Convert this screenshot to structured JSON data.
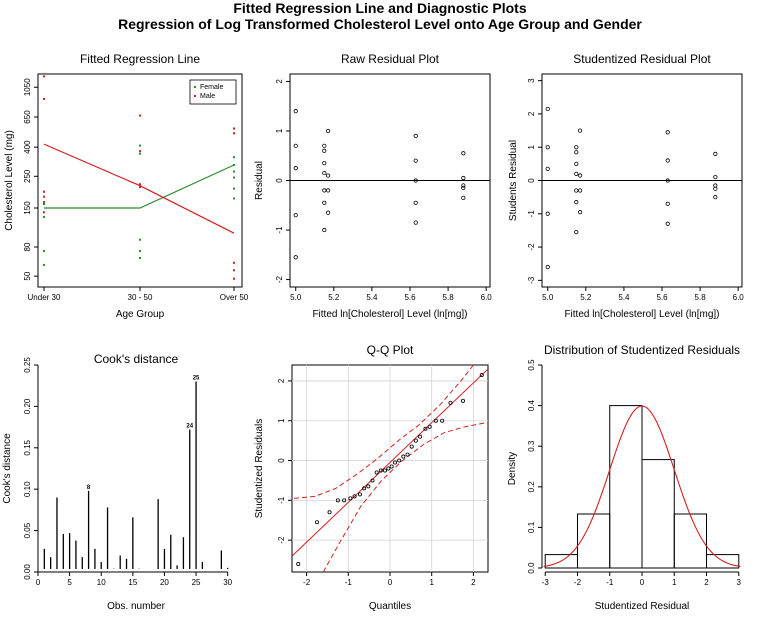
{
  "figure": {
    "title_line1": "Fitted Regression Line and Diagnostic Plots",
    "title_line2": "Regression of Log Transformed Cholesterol Level onto Age Group and Gender"
  },
  "chart_data": [
    {
      "id": "fitted",
      "type": "scatter",
      "title": "Fitted Regression Line",
      "xlabel": "Age Group",
      "ylabel": "Cholesterol Level (mg)",
      "categories": [
        "Under 30",
        "30 - 50",
        "Over 50"
      ],
      "y_scale": "log",
      "y_ticks": [
        50,
        80,
        150,
        250,
        400,
        650,
        1050
      ],
      "ylim": [
        42,
        1300
      ],
      "legend": {
        "placement": "top-right",
        "entries": [
          "Female",
          "Male"
        ]
      },
      "series": [
        {
          "name": "Female",
          "color": "#2e8b2e",
          "points": [
            [
              0,
              60
            ],
            [
              0,
              75
            ],
            [
              0,
              130
            ],
            [
              0,
              160
            ],
            [
              0,
              195
            ],
            [
              1,
              67
            ],
            [
              1,
              75
            ],
            [
              1,
              90
            ],
            [
              1,
              360
            ],
            [
              1,
              410
            ],
            [
              2,
              175
            ],
            [
              2,
              205
            ],
            [
              2,
              245
            ],
            [
              2,
              270
            ],
            [
              2,
              300
            ],
            [
              2,
              340
            ]
          ],
          "fit": [
            150,
            150,
            300
          ]
        },
        {
          "name": "Male",
          "color": "#d42020",
          "points": [
            [
              0,
              140
            ],
            [
              0,
              165
            ],
            [
              0,
              180
            ],
            [
              0,
              195
            ],
            [
              0,
              870
            ],
            [
              0,
              1250
            ],
            [
              1,
              210
            ],
            [
              1,
              220
            ],
            [
              1,
              375
            ],
            [
              1,
              665
            ],
            [
              2,
              48
            ],
            [
              2,
              55
            ],
            [
              2,
              62
            ],
            [
              2,
              500
            ],
            [
              2,
              540
            ]
          ],
          "fit": [
            420,
            215,
            100
          ]
        }
      ]
    },
    {
      "id": "raw_resid",
      "type": "scatter",
      "title": "Raw Residual Plot",
      "xlabel": "Fitted ln[Cholesterol] Level (ln[mg])",
      "ylabel": "Residual",
      "xlim": [
        4.97,
        6.02
      ],
      "ylim": [
        -2.15,
        2.15
      ],
      "x_ticks": [
        "5.0",
        "5.2",
        "5.4",
        "5.6",
        "5.8",
        "6.0"
      ],
      "y_ticks": [
        "-2",
        "-1",
        "0",
        "1",
        "2"
      ],
      "reference_line": 0,
      "points": [
        [
          5.0,
          1.4
        ],
        [
          5.0,
          0.7
        ],
        [
          5.0,
          0.25
        ],
        [
          5.0,
          -0.7
        ],
        [
          5.0,
          -1.55
        ],
        [
          5.15,
          0.7
        ],
        [
          5.15,
          0.6
        ],
        [
          5.15,
          0.35
        ],
        [
          5.15,
          0.15
        ],
        [
          5.15,
          -0.2
        ],
        [
          5.15,
          -0.45
        ],
        [
          5.15,
          -1.0
        ],
        [
          5.17,
          1.0
        ],
        [
          5.17,
          0.1
        ],
        [
          5.17,
          -0.2
        ],
        [
          5.17,
          -0.65
        ],
        [
          5.63,
          0.9
        ],
        [
          5.63,
          0.4
        ],
        [
          5.63,
          0.0
        ],
        [
          5.63,
          -0.45
        ],
        [
          5.63,
          -0.85
        ],
        [
          5.88,
          0.55
        ],
        [
          5.88,
          0.05
        ],
        [
          5.88,
          -0.1
        ],
        [
          5.88,
          -0.15
        ],
        [
          5.88,
          -0.35
        ]
      ]
    },
    {
      "id": "stud_resid",
      "type": "scatter",
      "title": "Studentized Residual Plot",
      "xlabel": "Fitted ln[Cholesterol] Level (ln[mg])",
      "ylabel": "Students Residual",
      "xlim": [
        4.97,
        6.02
      ],
      "ylim": [
        -3.2,
        3.2
      ],
      "x_ticks": [
        "5.0",
        "5.2",
        "5.4",
        "5.6",
        "5.8",
        "6.0"
      ],
      "y_ticks": [
        "-3",
        "-2",
        "-1",
        "0",
        "1",
        "2",
        "3"
      ],
      "reference_line": 0,
      "points": [
        [
          5.0,
          2.15
        ],
        [
          5.0,
          1.0
        ],
        [
          5.0,
          0.35
        ],
        [
          5.0,
          -1.0
        ],
        [
          5.0,
          -2.6
        ],
        [
          5.15,
          1.0
        ],
        [
          5.15,
          0.85
        ],
        [
          5.15,
          0.5
        ],
        [
          5.15,
          0.2
        ],
        [
          5.15,
          -0.3
        ],
        [
          5.15,
          -0.65
        ],
        [
          5.15,
          -1.55
        ],
        [
          5.17,
          1.5
        ],
        [
          5.17,
          0.15
        ],
        [
          5.17,
          -0.3
        ],
        [
          5.17,
          -0.95
        ],
        [
          5.63,
          1.45
        ],
        [
          5.63,
          0.6
        ],
        [
          5.63,
          0.0
        ],
        [
          5.63,
          -0.7
        ],
        [
          5.63,
          -1.3
        ],
        [
          5.88,
          0.8
        ],
        [
          5.88,
          0.1
        ],
        [
          5.88,
          -0.15
        ],
        [
          5.88,
          -0.25
        ],
        [
          5.88,
          -0.5
        ]
      ]
    },
    {
      "id": "cooks",
      "type": "bar",
      "title": "Cook's distance",
      "xlabel": "Obs. number",
      "ylabel": "Cook's distance",
      "xlim": [
        0,
        31
      ],
      "ylim": [
        0,
        0.25
      ],
      "x_ticks": [
        0,
        5,
        10,
        15,
        20,
        25,
        30
      ],
      "y_ticks": [
        "0.00",
        "0.05",
        "0.10",
        "0.15",
        "0.20",
        "0.25"
      ],
      "x": [
        1,
        2,
        3,
        4,
        5,
        6,
        7,
        8,
        9,
        10,
        11,
        12,
        13,
        14,
        15,
        16,
        17,
        18,
        19,
        20,
        21,
        22,
        23,
        24,
        25,
        26,
        27,
        28,
        29,
        30
      ],
      "values": [
        0.028,
        0.018,
        0.09,
        0.046,
        0.047,
        0.038,
        0.018,
        0.098,
        0.028,
        0.012,
        0.078,
        0.004,
        0.02,
        0.016,
        0.066,
        0.004,
        0.002,
        0.003,
        0.088,
        0.028,
        0.045,
        0.008,
        0.042,
        0.172,
        0.23,
        0.012,
        0.003,
        0.003,
        0.026,
        0.005
      ],
      "labeled_points": [
        {
          "x": 8,
          "label": "8"
        },
        {
          "x": 24,
          "label": "24"
        },
        {
          "x": 25,
          "label": "25"
        }
      ]
    },
    {
      "id": "qq",
      "type": "scatter",
      "title": "Q-Q Plot",
      "xlabel": "Quantiles",
      "ylabel": "Studentized Residuals",
      "xlim": [
        -2.35,
        2.35
      ],
      "ylim": [
        -2.8,
        2.4
      ],
      "x_ticks": [
        "-2",
        "-1",
        "0",
        "1",
        "2"
      ],
      "y_ticks": [
        "-2",
        "-1",
        "0",
        "1",
        "2"
      ],
      "grid": true,
      "points": [
        [
          -2.2,
          -2.6
        ],
        [
          -1.75,
          -1.55
        ],
        [
          -1.45,
          -1.3
        ],
        [
          -1.25,
          -1.0
        ],
        [
          -1.1,
          -1.0
        ],
        [
          -0.95,
          -0.95
        ],
        [
          -0.85,
          -0.9
        ],
        [
          -0.72,
          -0.85
        ],
        [
          -0.62,
          -0.7
        ],
        [
          -0.52,
          -0.65
        ],
        [
          -0.42,
          -0.5
        ],
        [
          -0.32,
          -0.3
        ],
        [
          -0.22,
          -0.25
        ],
        [
          -0.12,
          -0.25
        ],
        [
          -0.04,
          -0.2
        ],
        [
          0.04,
          -0.15
        ],
        [
          0.12,
          -0.05
        ],
        [
          0.22,
          0.0
        ],
        [
          0.32,
          0.1
        ],
        [
          0.42,
          0.15
        ],
        [
          0.52,
          0.35
        ],
        [
          0.62,
          0.5
        ],
        [
          0.72,
          0.6
        ],
        [
          0.85,
          0.8
        ],
        [
          0.95,
          0.85
        ],
        [
          1.1,
          1.0
        ],
        [
          1.25,
          1.0
        ],
        [
          1.45,
          1.45
        ],
        [
          1.75,
          1.5
        ],
        [
          2.2,
          2.15
        ]
      ],
      "reference_line": {
        "intercept": -0.05,
        "slope": 1.0
      },
      "envelope_upper": [
        [
          -2.3,
          -0.95
        ],
        [
          -1.8,
          -0.9
        ],
        [
          -1.3,
          -0.7
        ],
        [
          -0.8,
          -0.35
        ],
        [
          -0.3,
          0.05
        ],
        [
          0.2,
          0.5
        ],
        [
          0.7,
          0.9
        ],
        [
          1.2,
          1.4
        ],
        [
          1.7,
          2.0
        ],
        [
          2.0,
          2.4
        ]
      ],
      "envelope_lower": [
        [
          -1.6,
          -2.8
        ],
        [
          -1.2,
          -2.05
        ],
        [
          -0.7,
          -1.15
        ],
        [
          -0.2,
          -0.5
        ],
        [
          0.3,
          0.0
        ],
        [
          0.8,
          0.4
        ],
        [
          1.3,
          0.7
        ],
        [
          1.8,
          0.85
        ],
        [
          2.3,
          0.95
        ]
      ]
    },
    {
      "id": "dist",
      "type": "bar",
      "title": "Distribution of Studentized Residuals",
      "xlabel": "Studentized Residual",
      "ylabel": "Density",
      "xlim": [
        -3.1,
        3.1
      ],
      "ylim": [
        0,
        0.5
      ],
      "x_ticks": [
        "-3",
        "-2",
        "-1",
        "0",
        "1",
        "2",
        "3"
      ],
      "y_ticks": [
        "0.0",
        "0.1",
        "0.2",
        "0.3",
        "0.4",
        "0.5"
      ],
      "bins": [
        [
          -3,
          -2,
          0.033
        ],
        [
          -2,
          -1,
          0.133
        ],
        [
          -1,
          0,
          0.4
        ],
        [
          0,
          1,
          0.267
        ],
        [
          1,
          2,
          0.133
        ],
        [
          2,
          3,
          0.033
        ]
      ],
      "density_curve": "normal(0,1)"
    }
  ]
}
